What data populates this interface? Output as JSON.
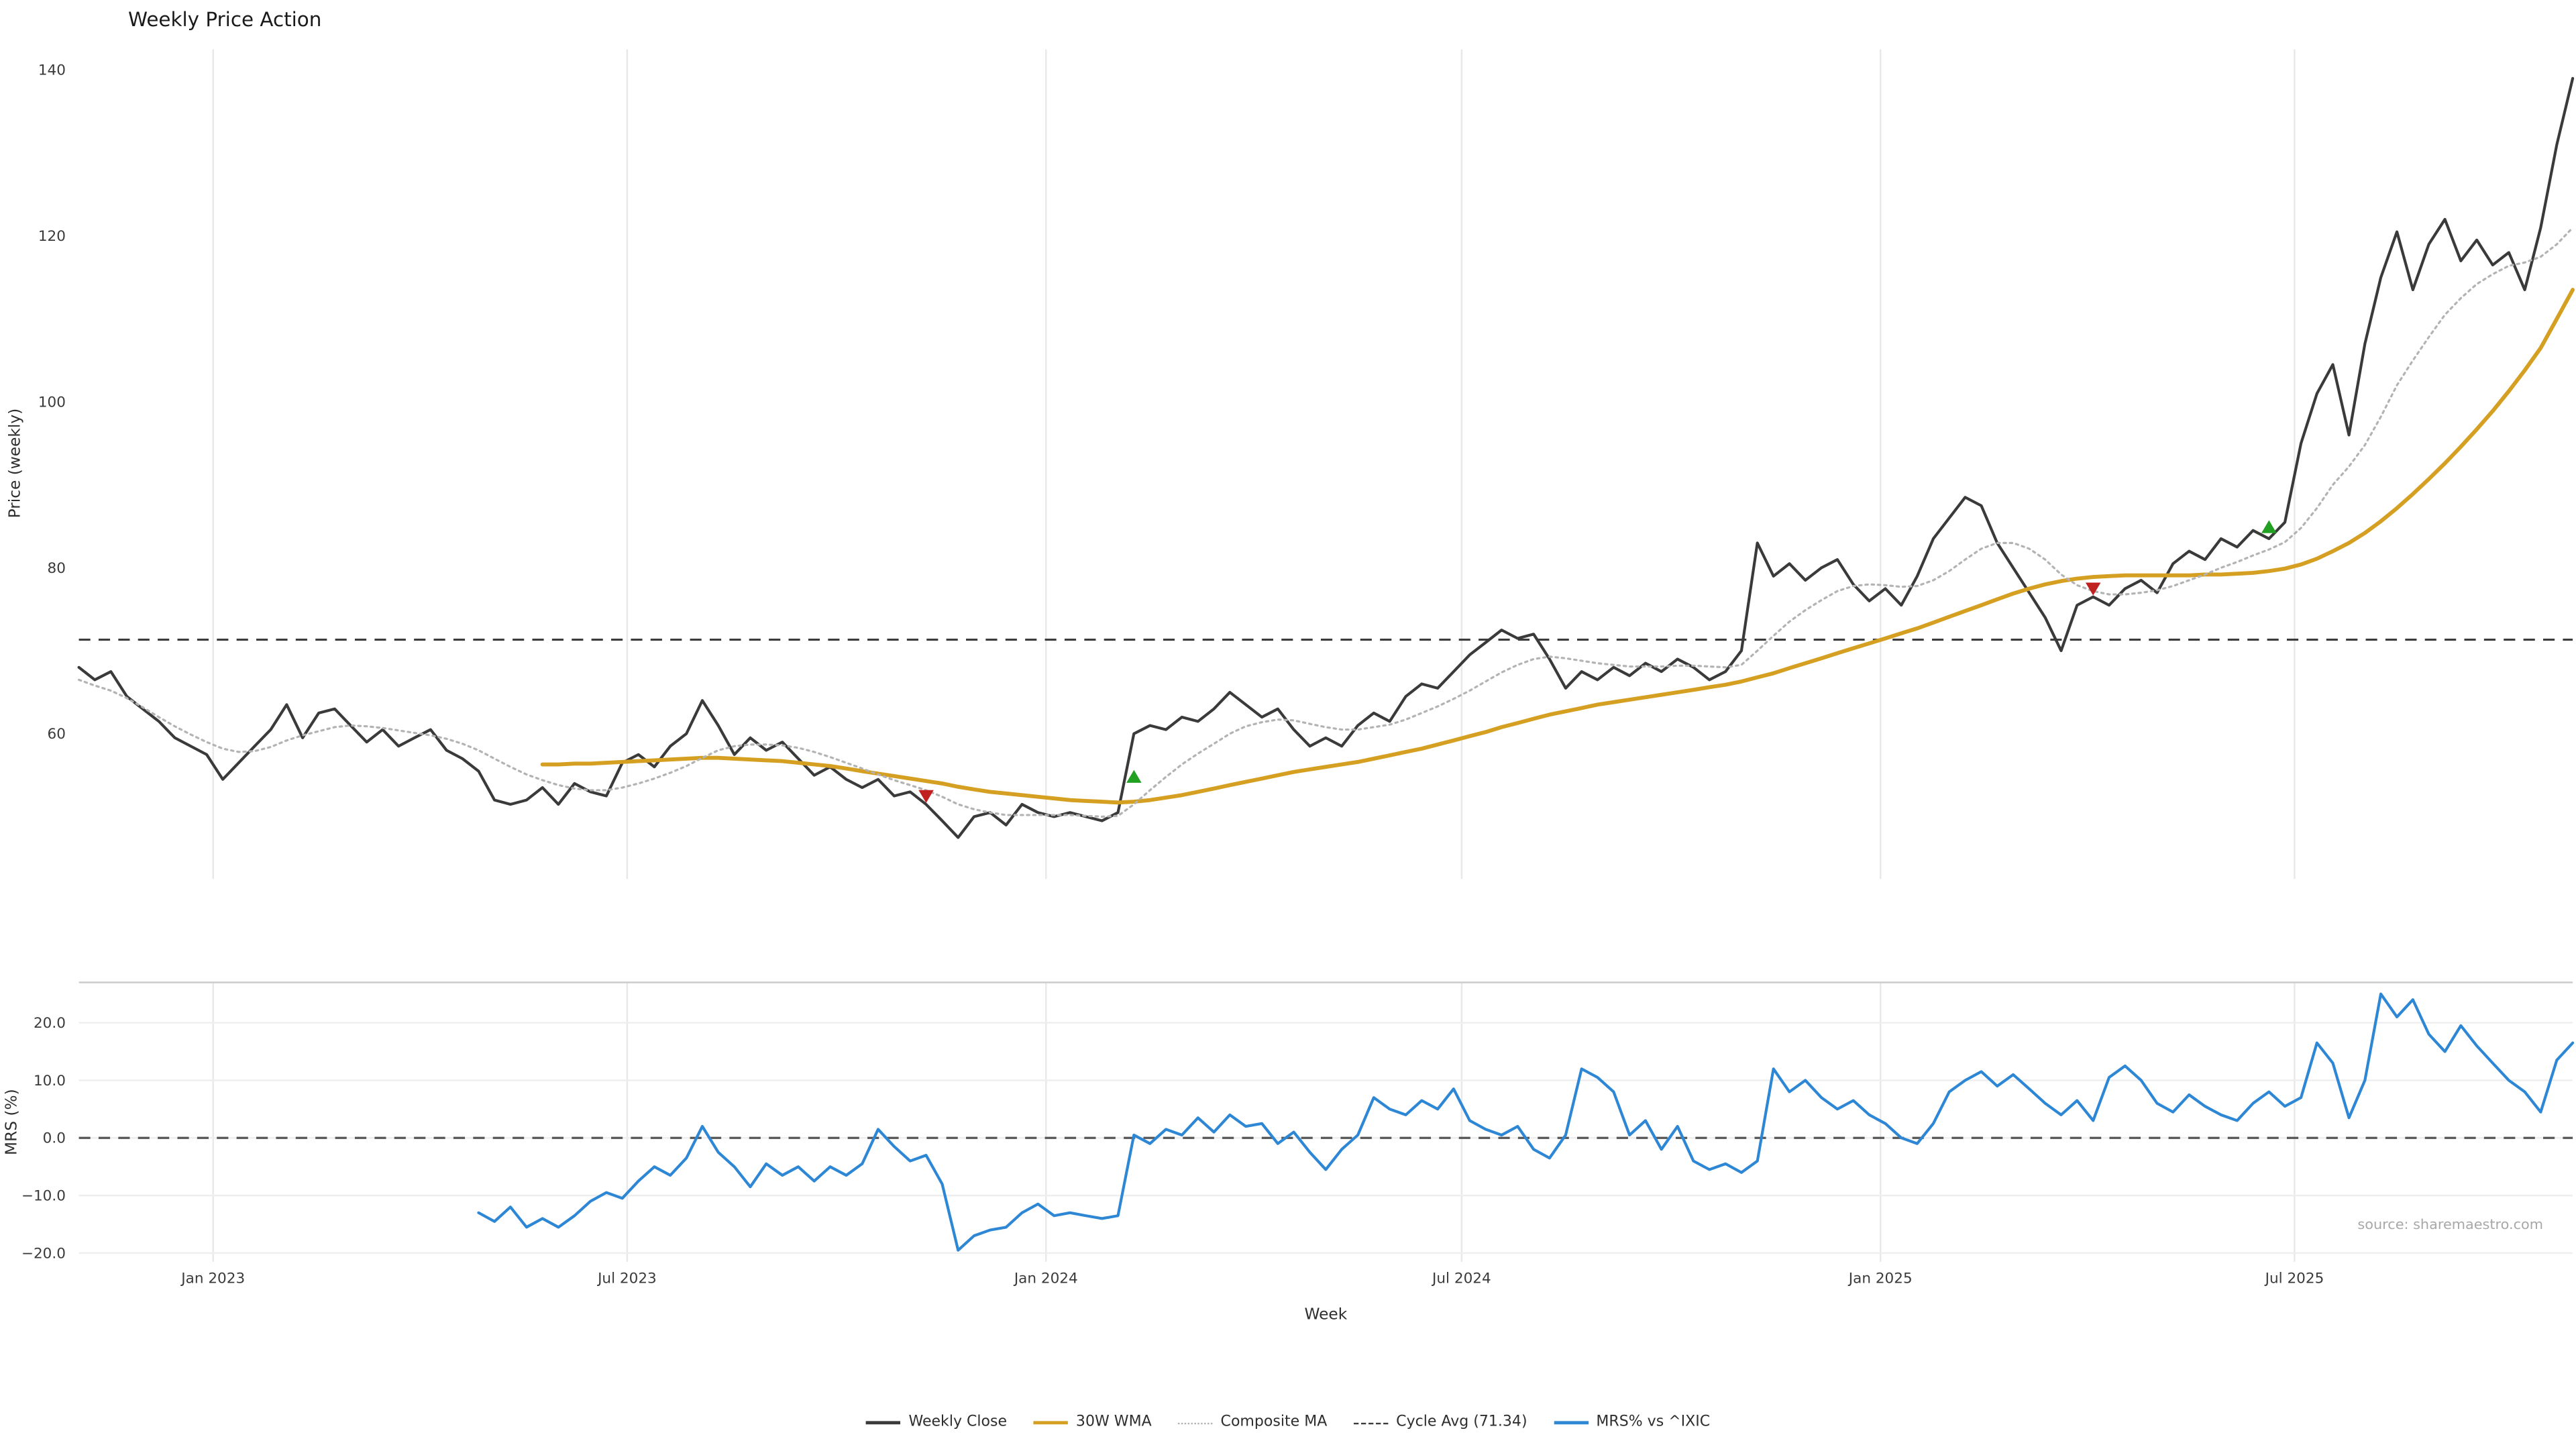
{
  "chart_data": {
    "type": "line",
    "title": "Weekly Price Action",
    "xlabel": "Week",
    "source_note": "source: sharemaestro.com",
    "x_axis": {
      "unit": "week",
      "total_weeks": 157,
      "ticks": [
        {
          "week_index": 8.4,
          "label": "Jan 2023"
        },
        {
          "week_index": 34.3,
          "label": "Jul 2023"
        },
        {
          "week_index": 60.5,
          "label": "Jan 2024"
        },
        {
          "week_index": 86.5,
          "label": "Jul 2024"
        },
        {
          "week_index": 112.7,
          "label": "Jan 2025"
        },
        {
          "week_index": 138.6,
          "label": "Jul 2025"
        }
      ]
    },
    "panels": [
      {
        "name": "price",
        "ylabel": "Price (weekly)",
        "ylim": [
          42.5,
          142.5
        ],
        "grid": "vertical",
        "yticks": [
          {
            "value": 140,
            "label": "140"
          },
          {
            "value": 120,
            "label": "120"
          },
          {
            "value": 100,
            "label": "100"
          },
          {
            "value": 80,
            "label": "80"
          },
          {
            "value": 60,
            "label": "60"
          }
        ],
        "reference_line": {
          "label": "Cycle Avg (71.34)",
          "value": 71.34,
          "style": "dashed",
          "color": "#3c3c3c"
        },
        "series": [
          {
            "name": "Weekly Close",
            "color": "#3a3a3a",
            "style": "solid",
            "width": 1.7,
            "start_index": 0,
            "values": [
              68,
              66.5,
              67.5,
              64.5,
              63,
              61.5,
              59.5,
              58.5,
              57.5,
              54.5,
              56.5,
              58.5,
              60.5,
              63.5,
              59.5,
              62.5,
              63,
              61,
              59,
              60.5,
              58.5,
              59.5,
              60.5,
              58,
              57,
              55.5,
              52,
              51.5,
              52,
              53.5,
              51.5,
              54,
              53,
              52.5,
              56.5,
              57.5,
              56,
              58.5,
              60,
              64,
              61,
              57.5,
              59.5,
              58,
              59,
              57,
              55,
              56,
              54.5,
              53.5,
              54.5,
              52.5,
              53,
              51.5,
              49.5,
              47.5,
              50,
              50.5,
              49,
              51.5,
              50.5,
              50,
              50.5,
              50,
              49.5,
              50.5,
              60,
              61,
              60.5,
              62,
              61.5,
              63,
              65,
              63.5,
              62,
              63,
              60.5,
              58.5,
              59.5,
              58.5,
              61,
              62.5,
              61.5,
              64.5,
              66,
              65.5,
              67.5,
              69.5,
              71,
              72.5,
              71.5,
              72,
              69,
              65.5,
              67.5,
              66.5,
              68,
              67,
              68.5,
              67.5,
              69,
              68,
              66.5,
              67.5,
              70,
              83,
              79,
              80.5,
              78.5,
              80,
              81,
              78,
              76,
              77.5,
              75.5,
              79,
              83.5,
              86,
              88.5,
              87.5,
              83,
              80,
              77,
              74,
              70,
              75.5,
              76.5,
              75.5,
              77.5,
              78.5,
              77,
              80.5,
              82,
              81,
              83.5,
              82.5,
              84.5,
              83.5,
              85.5,
              95,
              101,
              104.5,
              96,
              107,
              115,
              120.5,
              113.5,
              119,
              122,
              117,
              119.5,
              116.5,
              118,
              113.5,
              121,
              131,
              139
            ]
          },
          {
            "name": "30W WMA",
            "color": "#d5a021",
            "style": "solid",
            "width": 2.4,
            "start_index": 29,
            "values": [
              56.3,
              56.3,
              56.4,
              56.4,
              56.5,
              56.6,
              56.7,
              56.8,
              56.9,
              57,
              57.1,
              57.1,
              57,
              56.9,
              56.8,
              56.7,
              56.5,
              56.3,
              56.1,
              55.8,
              55.5,
              55.2,
              54.9,
              54.6,
              54.3,
              54,
              53.6,
              53.3,
              53,
              52.8,
              52.6,
              52.4,
              52.2,
              52,
              51.9,
              51.8,
              51.7,
              51.8,
              52,
              52.3,
              52.6,
              53,
              53.4,
              53.8,
              54.2,
              54.6,
              55,
              55.4,
              55.7,
              56,
              56.3,
              56.6,
              57,
              57.4,
              57.8,
              58.2,
              58.7,
              59.2,
              59.7,
              60.2,
              60.8,
              61.3,
              61.8,
              62.3,
              62.7,
              63.1,
              63.5,
              63.8,
              64.1,
              64.4,
              64.7,
              65,
              65.3,
              65.6,
              65.9,
              66.3,
              66.8,
              67.3,
              67.9,
              68.5,
              69.1,
              69.7,
              70.3,
              70.9,
              71.5,
              72.1,
              72.7,
              73.4,
              74.1,
              74.8,
              75.5,
              76.2,
              76.9,
              77.5,
              78,
              78.4,
              78.7,
              78.9,
              79,
              79.1,
              79.1,
              79.1,
              79.1,
              79.1,
              79.2,
              79.2,
              79.3,
              79.4,
              79.6,
              79.9,
              80.4,
              81.1,
              82,
              83,
              84.2,
              85.6,
              87.2,
              88.9,
              90.7,
              92.6,
              94.6,
              96.7,
              98.9,
              101.3,
              103.8,
              106.5,
              110,
              113.5
            ]
          },
          {
            "name": "Composite MA",
            "color": "#b3b3b3",
            "style": "dotted",
            "width": 1.3,
            "start_index": 0,
            "values": [
              66.5,
              65.8,
              65.2,
              64.3,
              63.2,
              62,
              60.9,
              59.9,
              59,
              58.2,
              57.8,
              57.9,
              58.4,
              59.2,
              59.8,
              60.3,
              60.8,
              61,
              60.9,
              60.7,
              60.4,
              60.1,
              59.8,
              59.4,
              58.8,
              58,
              57,
              56,
              55.1,
              54.4,
              53.8,
              53.4,
              53.2,
              53.2,
              53.5,
              54,
              54.6,
              55.3,
              56.1,
              57.1,
              58,
              58.5,
              58.7,
              58.7,
              58.6,
              58.3,
              57.8,
              57.2,
              56.5,
              55.8,
              55.1,
              54.4,
              53.8,
              53.2,
              52.4,
              51.5,
              50.9,
              50.5,
              50.2,
              50.2,
              50.2,
              50.2,
              50.2,
              50.1,
              50,
              50.1,
              51.5,
              53.2,
              54.8,
              56.3,
              57.6,
              58.8,
              60,
              60.9,
              61.4,
              61.7,
              61.6,
              61.2,
              60.8,
              60.5,
              60.5,
              60.8,
              61.1,
              61.7,
              62.5,
              63.3,
              64.2,
              65.2,
              66.3,
              67.4,
              68.3,
              69,
              69.3,
              69.1,
              68.8,
              68.5,
              68.3,
              68.1,
              68.1,
              68.1,
              68.2,
              68.2,
              68.1,
              68,
              68.3,
              70,
              71.8,
              73.5,
              74.9,
              76.1,
              77.2,
              77.8,
              78,
              77.9,
              77.7,
              77.8,
              78.5,
              79.6,
              81,
              82.3,
              83,
              83,
              82.3,
              81,
              79.2,
              77.9,
              77.2,
              76.8,
              76.8,
              77,
              77.3,
              77.8,
              78.5,
              79.2,
              80,
              80.7,
              81.5,
              82.2,
              83.1,
              84.8,
              87.2,
              90,
              92.2,
              94.8,
              98.2,
              102,
              105,
              107.8,
              110.5,
              112.5,
              114.2,
              115.4,
              116.4,
              116.8,
              117.5,
              119,
              121
            ]
          }
        ]
      },
      {
        "name": "mrs",
        "ylabel": "MRS (%)",
        "ylim": [
          -21.5,
          27
        ],
        "grid": "both",
        "yticks": [
          {
            "value": 20,
            "label": "20.0"
          },
          {
            "value": 10,
            "label": "10.0"
          },
          {
            "value": 0,
            "label": "0.0"
          },
          {
            "value": -10,
            "label": "−10.0"
          },
          {
            "value": -20,
            "label": "−20.0"
          }
        ],
        "reference_line": {
          "label": "zero",
          "value": 0,
          "style": "dashed",
          "color": "#555555"
        },
        "series": [
          {
            "name": "MRS% vs ^IXIC",
            "color": "#2d87d5",
            "style": "solid",
            "width": 1.7,
            "start_index": 25,
            "values": [
              -13,
              -14.5,
              -12,
              -15.5,
              -14,
              -15.5,
              -13.5,
              -11,
              -9.5,
              -10.5,
              -7.5,
              -5,
              -6.5,
              -3.5,
              2,
              -2.5,
              -5,
              -8.5,
              -4.5,
              -6.5,
              -5,
              -7.5,
              -5,
              -6.5,
              -4.5,
              1.5,
              -1.5,
              -4,
              -3,
              -8,
              -19.5,
              -17,
              -16,
              -15.5,
              -13,
              -11.5,
              -13.5,
              -13,
              -13.5,
              -14,
              -13.5,
              0.5,
              -1,
              1.5,
              0.5,
              3.5,
              1,
              4,
              2,
              2.5,
              -1,
              1,
              -2.5,
              -5.5,
              -2,
              0.5,
              7,
              5,
              4,
              6.5,
              5,
              8.5,
              3,
              1.5,
              0.5,
              2,
              -2,
              -3.5,
              0.5,
              12,
              10.5,
              8,
              0.5,
              3,
              -2,
              2,
              -4,
              -5.5,
              -4.5,
              -6,
              -4,
              12,
              8,
              10,
              7,
              5,
              6.5,
              4,
              2.5,
              0,
              -1,
              2.5,
              8,
              10,
              11.5,
              9,
              11,
              8.5,
              6,
              4,
              6.5,
              3,
              10.5,
              12.5,
              10,
              6,
              4.5,
              7.5,
              5.5,
              4,
              3,
              6,
              8,
              5.5,
              7,
              16.5,
              13,
              3.5,
              10,
              25,
              21,
              24,
              18,
              15,
              19.5,
              16,
              13,
              10,
              8,
              4.5,
              13.5,
              16.5
            ]
          }
        ]
      }
    ],
    "signal_markers": [
      {
        "type": "sell",
        "week_index": 53,
        "price": 52.5
      },
      {
        "type": "buy",
        "week_index": 66,
        "price": 54.8
      },
      {
        "type": "sell",
        "week_index": 126,
        "price": 77.5
      },
      {
        "type": "buy",
        "week_index": 137,
        "price": 84.9
      }
    ],
    "signal_colors": {
      "buy": "#22a022",
      "sell": "#c02020"
    },
    "legend": {
      "position": "bottom-center",
      "items": [
        {
          "label": "Weekly Close",
          "color": "#3a3a3a",
          "style": "solid"
        },
        {
          "label": "30W WMA",
          "color": "#d5a021",
          "style": "solid"
        },
        {
          "label": "Composite MA",
          "color": "#b3b3b3",
          "style": "dotted"
        },
        {
          "label": "Cycle Avg (71.34)",
          "color": "#3c3c3c",
          "style": "dashed"
        },
        {
          "label": "MRS% vs ^IXIC",
          "color": "#2d87d5",
          "style": "solid"
        }
      ]
    }
  }
}
